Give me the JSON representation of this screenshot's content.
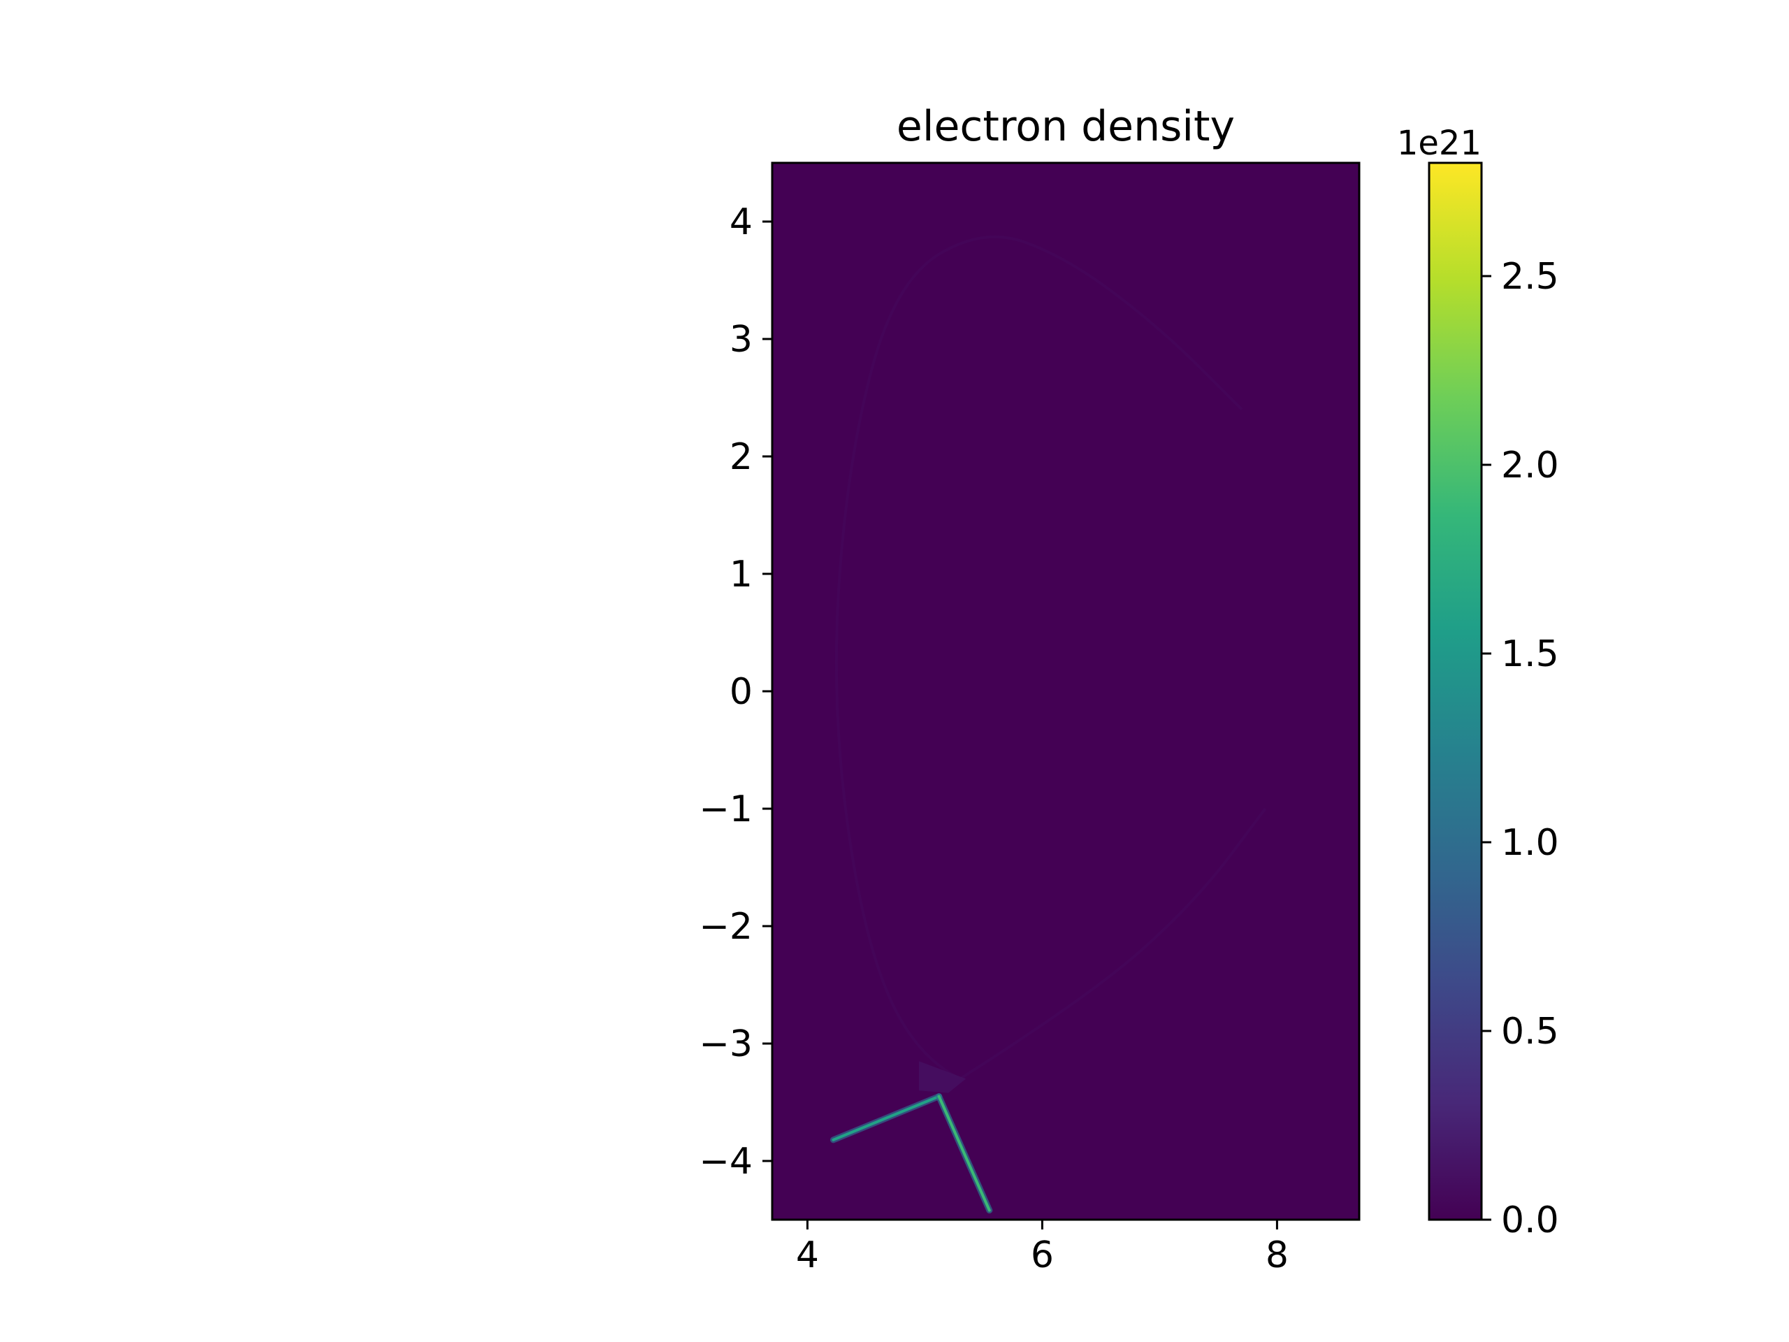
{
  "chart_data": {
    "type": "heatmap",
    "title": "electron density",
    "xlabel": "",
    "ylabel": "",
    "xlim": [
      3.7,
      8.7
    ],
    "ylim": [
      -4.5,
      4.5
    ],
    "x_ticks": [
      4,
      6,
      8
    ],
    "y_ticks": [
      -4,
      -3,
      -2,
      -1,
      0,
      1,
      2,
      3,
      4
    ],
    "x_tick_labels": [
      "4",
      "6",
      "8"
    ],
    "y_tick_labels": [
      "−4",
      "−3",
      "−2",
      "−1",
      "0",
      "1",
      "2",
      "3",
      "4"
    ],
    "background_value": 0.0,
    "colorbar": {
      "colormap": "viridis",
      "range": [
        0.0,
        2.8
      ],
      "ticks": [
        0.0,
        0.5,
        1.0,
        1.5,
        2.0,
        2.5
      ],
      "tick_labels": [
        "0.0",
        "0.5",
        "1.0",
        "1.5",
        "2.0",
        "2.5"
      ],
      "offset_label": "1e21",
      "stops": [
        "#440154",
        "#482878",
        "#3e4989",
        "#31688e",
        "#26828e",
        "#1f9e89",
        "#35b779",
        "#6ece58",
        "#b5de2b",
        "#fde725"
      ]
    },
    "features": [
      {
        "name": "separatrix-outline",
        "value": 0.04,
        "points": [
          [
            5.3,
            -3.3
          ],
          [
            4.9,
            -3.1
          ],
          [
            4.45,
            -2.0
          ],
          [
            4.2,
            0.0
          ],
          [
            4.35,
            2.0
          ],
          [
            4.75,
            3.5
          ],
          [
            5.5,
            3.95
          ],
          [
            6.2,
            3.7
          ],
          [
            7.0,
            3.1
          ],
          [
            7.7,
            2.4
          ]
        ]
      },
      {
        "name": "separatrix-lower-right",
        "value": 0.04,
        "points": [
          [
            5.3,
            -3.3
          ],
          [
            6.4,
            -2.6
          ],
          [
            7.3,
            -1.8
          ],
          [
            7.9,
            -1.0
          ]
        ]
      },
      {
        "name": "x-point-shading",
        "value": 0.12,
        "points": [
          [
            4.95,
            -3.15
          ],
          [
            5.35,
            -3.3
          ],
          [
            5.2,
            -3.42
          ],
          [
            4.95,
            -3.4
          ]
        ]
      },
      {
        "name": "inner-divertor-leg",
        "value": 1.6,
        "points": [
          [
            4.22,
            -3.82
          ],
          [
            5.12,
            -3.45
          ]
        ]
      },
      {
        "name": "outer-divertor-leg",
        "value": 1.9,
        "points": [
          [
            5.12,
            -3.45
          ],
          [
            5.55,
            -4.42
          ]
        ]
      }
    ]
  }
}
